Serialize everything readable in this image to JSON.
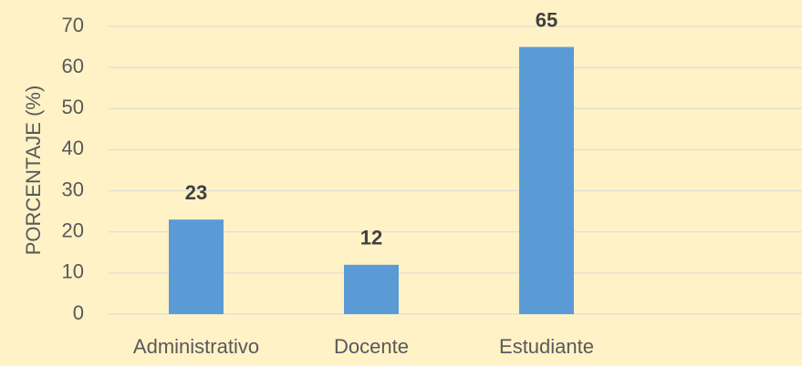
{
  "chart_data": {
    "type": "bar",
    "y_label": "PORCENTAJE (%)",
    "categories": [
      "Administrativo",
      "Docente",
      "Estudiante"
    ],
    "values": [
      23,
      12,
      65
    ],
    "color": "#5b9bd5",
    "ylim": [
      0,
      70
    ],
    "yticks": [
      0,
      10,
      20,
      30,
      40,
      50,
      60,
      70
    ],
    "grid": true
  }
}
